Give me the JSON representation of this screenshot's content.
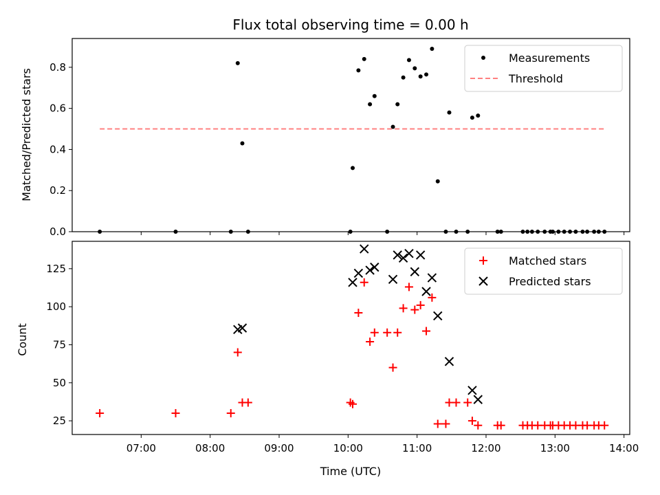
{
  "chart_data": [
    {
      "type": "scatter",
      "title": "Flux total observing time = 0.00 h",
      "xlabel": "",
      "ylabel": "Matched/Predicted stars",
      "xlim": [
        "06:00",
        "14:05"
      ],
      "ylim": [
        0,
        0.94
      ],
      "yticks": [
        0,
        0.2,
        0.4,
        0.6,
        0.8
      ],
      "ytick_labels": [
        "0.0",
        "0.2",
        "0.4",
        "0.6",
        "0.8"
      ],
      "xticks": [
        "07:00",
        "08:00",
        "09:00",
        "10:00",
        "11:00",
        "12:00",
        "13:00",
        "14:00"
      ],
      "show_xtick_labels": false,
      "legend_position": "top-right",
      "series": [
        {
          "name": "Measurements",
          "marker": "dot",
          "color": "#000000",
          "points": [
            [
              "06:24",
              0.0
            ],
            [
              "07:30",
              0.0
            ],
            [
              "08:18",
              0.0
            ],
            [
              "08:24",
              0.82
            ],
            [
              "08:28",
              0.43
            ],
            [
              "08:33",
              0.0
            ],
            [
              "10:02",
              0.0
            ],
            [
              "10:04",
              0.31
            ],
            [
              "10:09",
              0.785
            ],
            [
              "10:14",
              0.84
            ],
            [
              "10:19",
              0.62
            ],
            [
              "10:23",
              0.66
            ],
            [
              "10:34",
              0.0
            ],
            [
              "10:39",
              0.51
            ],
            [
              "10:43",
              0.62
            ],
            [
              "10:48",
              0.75
            ],
            [
              "10:53",
              0.835
            ],
            [
              "10:58",
              0.795
            ],
            [
              "11:03",
              0.755
            ],
            [
              "11:08",
              0.765
            ],
            [
              "11:13",
              0.89
            ],
            [
              "11:18",
              0.245
            ],
            [
              "11:25",
              0.0
            ],
            [
              "11:28",
              0.58
            ],
            [
              "11:34",
              0.0
            ],
            [
              "11:44",
              0.0
            ],
            [
              "11:48",
              0.555
            ],
            [
              "11:53",
              0.565
            ],
            [
              "12:10",
              0.0
            ],
            [
              "12:13",
              0.0
            ],
            [
              "12:32",
              0.0
            ],
            [
              "12:36",
              0.0
            ],
            [
              "12:40",
              0.0
            ],
            [
              "12:45",
              0.0
            ],
            [
              "12:51",
              0.0
            ],
            [
              "12:56",
              0.0
            ],
            [
              "12:58",
              0.0
            ],
            [
              "13:03",
              0.0
            ],
            [
              "13:08",
              0.0
            ],
            [
              "13:13",
              0.0
            ],
            [
              "13:18",
              0.0
            ],
            [
              "13:24",
              0.0
            ],
            [
              "13:28",
              0.0
            ],
            [
              "13:34",
              0.0
            ],
            [
              "13:38",
              0.0
            ],
            [
              "13:43",
              0.0
            ]
          ]
        },
        {
          "name": "Threshold",
          "marker": "dashed-line",
          "color": "#ff8080",
          "points": [
            [
              "06:24",
              0.5
            ],
            [
              "13:43",
              0.5
            ]
          ]
        }
      ]
    },
    {
      "type": "scatter",
      "title": "",
      "xlabel": "Time (UTC)",
      "ylabel": "Count",
      "xlim": [
        "06:00",
        "14:05"
      ],
      "ylim": [
        16,
        143
      ],
      "yticks": [
        25,
        50,
        75,
        100,
        125
      ],
      "ytick_labels": [
        "25",
        "50",
        "75",
        "100",
        "125"
      ],
      "xticks": [
        "07:00",
        "08:00",
        "09:00",
        "10:00",
        "11:00",
        "12:00",
        "13:00",
        "14:00"
      ],
      "show_xtick_labels": true,
      "legend_position": "top-right",
      "series": [
        {
          "name": "Matched stars",
          "marker": "plus",
          "color": "#ff0000",
          "points": [
            [
              "06:24",
              30
            ],
            [
              "07:30",
              30
            ],
            [
              "08:18",
              30
            ],
            [
              "08:24",
              70
            ],
            [
              "08:28",
              37
            ],
            [
              "08:33",
              37
            ],
            [
              "10:02",
              37
            ],
            [
              "10:04",
              36
            ],
            [
              "10:09",
              96
            ],
            [
              "10:14",
              116
            ],
            [
              "10:19",
              77
            ],
            [
              "10:23",
              83
            ],
            [
              "10:34",
              83
            ],
            [
              "10:39",
              60
            ],
            [
              "10:43",
              83
            ],
            [
              "10:48",
              99
            ],
            [
              "10:53",
              113
            ],
            [
              "10:58",
              98
            ],
            [
              "11:03",
              101
            ],
            [
              "11:08",
              84
            ],
            [
              "11:13",
              106
            ],
            [
              "11:18",
              23
            ],
            [
              "11:25",
              23
            ],
            [
              "11:28",
              37
            ],
            [
              "11:34",
              37
            ],
            [
              "11:44",
              37
            ],
            [
              "11:48",
              25
            ],
            [
              "11:53",
              22
            ],
            [
              "12:10",
              22
            ],
            [
              "12:13",
              22
            ],
            [
              "12:32",
              22
            ],
            [
              "12:36",
              22
            ],
            [
              "12:40",
              22
            ],
            [
              "12:45",
              22
            ],
            [
              "12:51",
              22
            ],
            [
              "12:56",
              22
            ],
            [
              "12:58",
              22
            ],
            [
              "13:03",
              22
            ],
            [
              "13:08",
              22
            ],
            [
              "13:13",
              22
            ],
            [
              "13:18",
              22
            ],
            [
              "13:24",
              22
            ],
            [
              "13:28",
              22
            ],
            [
              "13:34",
              22
            ],
            [
              "13:38",
              22
            ],
            [
              "13:43",
              22
            ]
          ]
        },
        {
          "name": "Predicted stars",
          "marker": "x",
          "color": "#000000",
          "points": [
            [
              "08:24",
              85
            ],
            [
              "08:28",
              86
            ],
            [
              "10:04",
              116
            ],
            [
              "10:09",
              122
            ],
            [
              "10:14",
              138
            ],
            [
              "10:19",
              124
            ],
            [
              "10:23",
              126
            ],
            [
              "10:39",
              118
            ],
            [
              "10:43",
              134
            ],
            [
              "10:48",
              132
            ],
            [
              "10:53",
              135
            ],
            [
              "10:58",
              123
            ],
            [
              "11:03",
              134
            ],
            [
              "11:08",
              110
            ],
            [
              "11:13",
              119
            ],
            [
              "11:18",
              94
            ],
            [
              "11:28",
              64
            ],
            [
              "11:48",
              45
            ],
            [
              "11:53",
              39
            ]
          ]
        }
      ]
    }
  ]
}
